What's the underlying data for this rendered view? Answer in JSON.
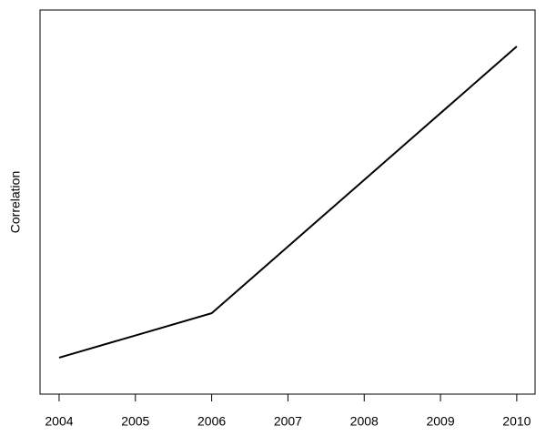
{
  "chart_data": {
    "type": "line",
    "ylabel": "Correlation",
    "x": [
      2004,
      2005,
      2006,
      2007,
      2008,
      2009,
      2010
    ],
    "series": [
      {
        "color": "#000000",
        "values": [
          0.2,
          0.25,
          0.3,
          0.45,
          0.6,
          0.75,
          0.9
        ]
      }
    ],
    "xlim": [
      2003.75,
      2010.24
    ],
    "xticks": [
      2004,
      2005,
      2006,
      2007,
      2008,
      2009,
      2010
    ],
    "ylim": [
      0.118,
      0.982
    ]
  }
}
